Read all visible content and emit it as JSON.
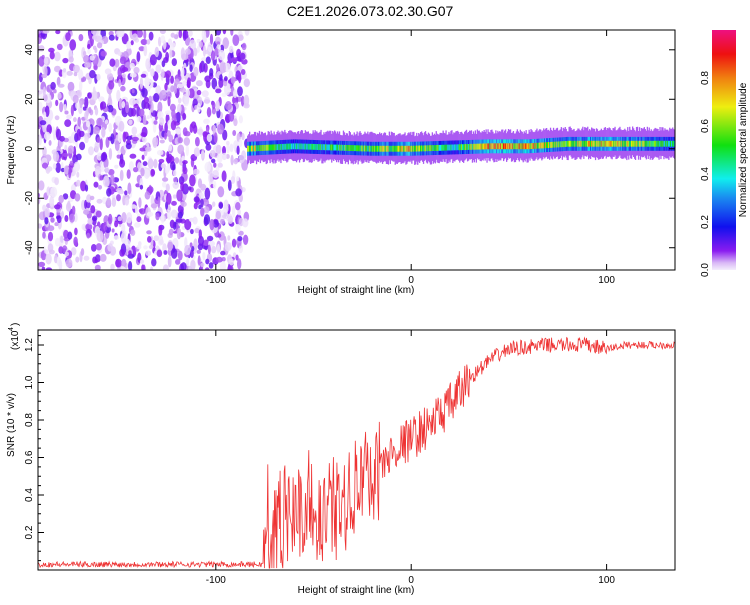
{
  "title": "C2E1.2026.073.02.30.G07",
  "chart_data": [
    {
      "type": "heatmap",
      "title": "C2E1.2026.073.02.30.G07",
      "xlabel": "Height of straight line (km)",
      "ylabel": "Frequency (Hz)",
      "xlim": [
        -191,
        135
      ],
      "ylim": [
        -49,
        48
      ],
      "xticks": [
        -100,
        0,
        100
      ],
      "xtick_labels": [
        "-100",
        "0",
        "100"
      ],
      "yticks": [
        40,
        20,
        0,
        -20,
        -40
      ],
      "ytick_labels": [
        "40",
        "20",
        "0",
        "-20",
        "-40"
      ],
      "colorbar": {
        "label": "Normalized spectral amplitude",
        "range": [
          0,
          1
        ],
        "ticks": [
          0.0,
          0.2,
          0.4,
          0.6,
          0.8
        ],
        "tick_labels": [
          "0.0",
          "0.2",
          "0.4",
          "0.6",
          "0.8"
        ]
      },
      "noise_region_x": [
        -191,
        -84
      ],
      "signal_track": {
        "x": [
          -84,
          -60,
          -40,
          -20,
          0,
          20,
          40,
          60,
          80,
          100,
          135
        ],
        "freq_hz": [
          0,
          1,
          0.5,
          0,
          0,
          0.5,
          1,
          1,
          2,
          2,
          2
        ],
        "amplitude": [
          0.8,
          0.5,
          0.6,
          0.7,
          0.85,
          0.5,
          0.9,
          0.9,
          0.7,
          0.9,
          0.5
        ]
      }
    },
    {
      "type": "line",
      "xlabel": "Height of straight line (km)",
      "ylabel": "SNR (10 * v/v)",
      "y_multiplier": "(x10",
      "y_multiplier_exp": "4",
      "y_multiplier_close": ")",
      "xlim": [
        -191,
        135
      ],
      "ylim": [
        0,
        1.28
      ],
      "xticks": [
        -100,
        0,
        100
      ],
      "xtick_labels": [
        "-100",
        "0",
        "100"
      ],
      "yticks": [
        0.2,
        0.4,
        0.6,
        0.8,
        1.0,
        1.2
      ],
      "ytick_labels": [
        "0.2",
        "0.4",
        "0.6",
        "0.8",
        "1.0",
        "1.2"
      ],
      "series": [
        {
          "name": "SNR",
          "color": "#ee3333",
          "x": [
            -191,
            -76,
            -73,
            -65,
            -55,
            -45,
            -35,
            -25,
            -15,
            -8,
            0,
            10,
            20,
            30,
            40,
            50,
            60,
            70,
            80,
            90,
            100,
            110,
            135
          ],
          "y": [
            0.03,
            0.03,
            0.12,
            0.3,
            0.32,
            0.3,
            0.35,
            0.45,
            0.55,
            0.65,
            0.7,
            0.78,
            0.88,
            1.02,
            1.12,
            1.18,
            1.19,
            1.2,
            1.2,
            1.2,
            1.18,
            1.2,
            1.2
          ]
        }
      ]
    }
  ]
}
